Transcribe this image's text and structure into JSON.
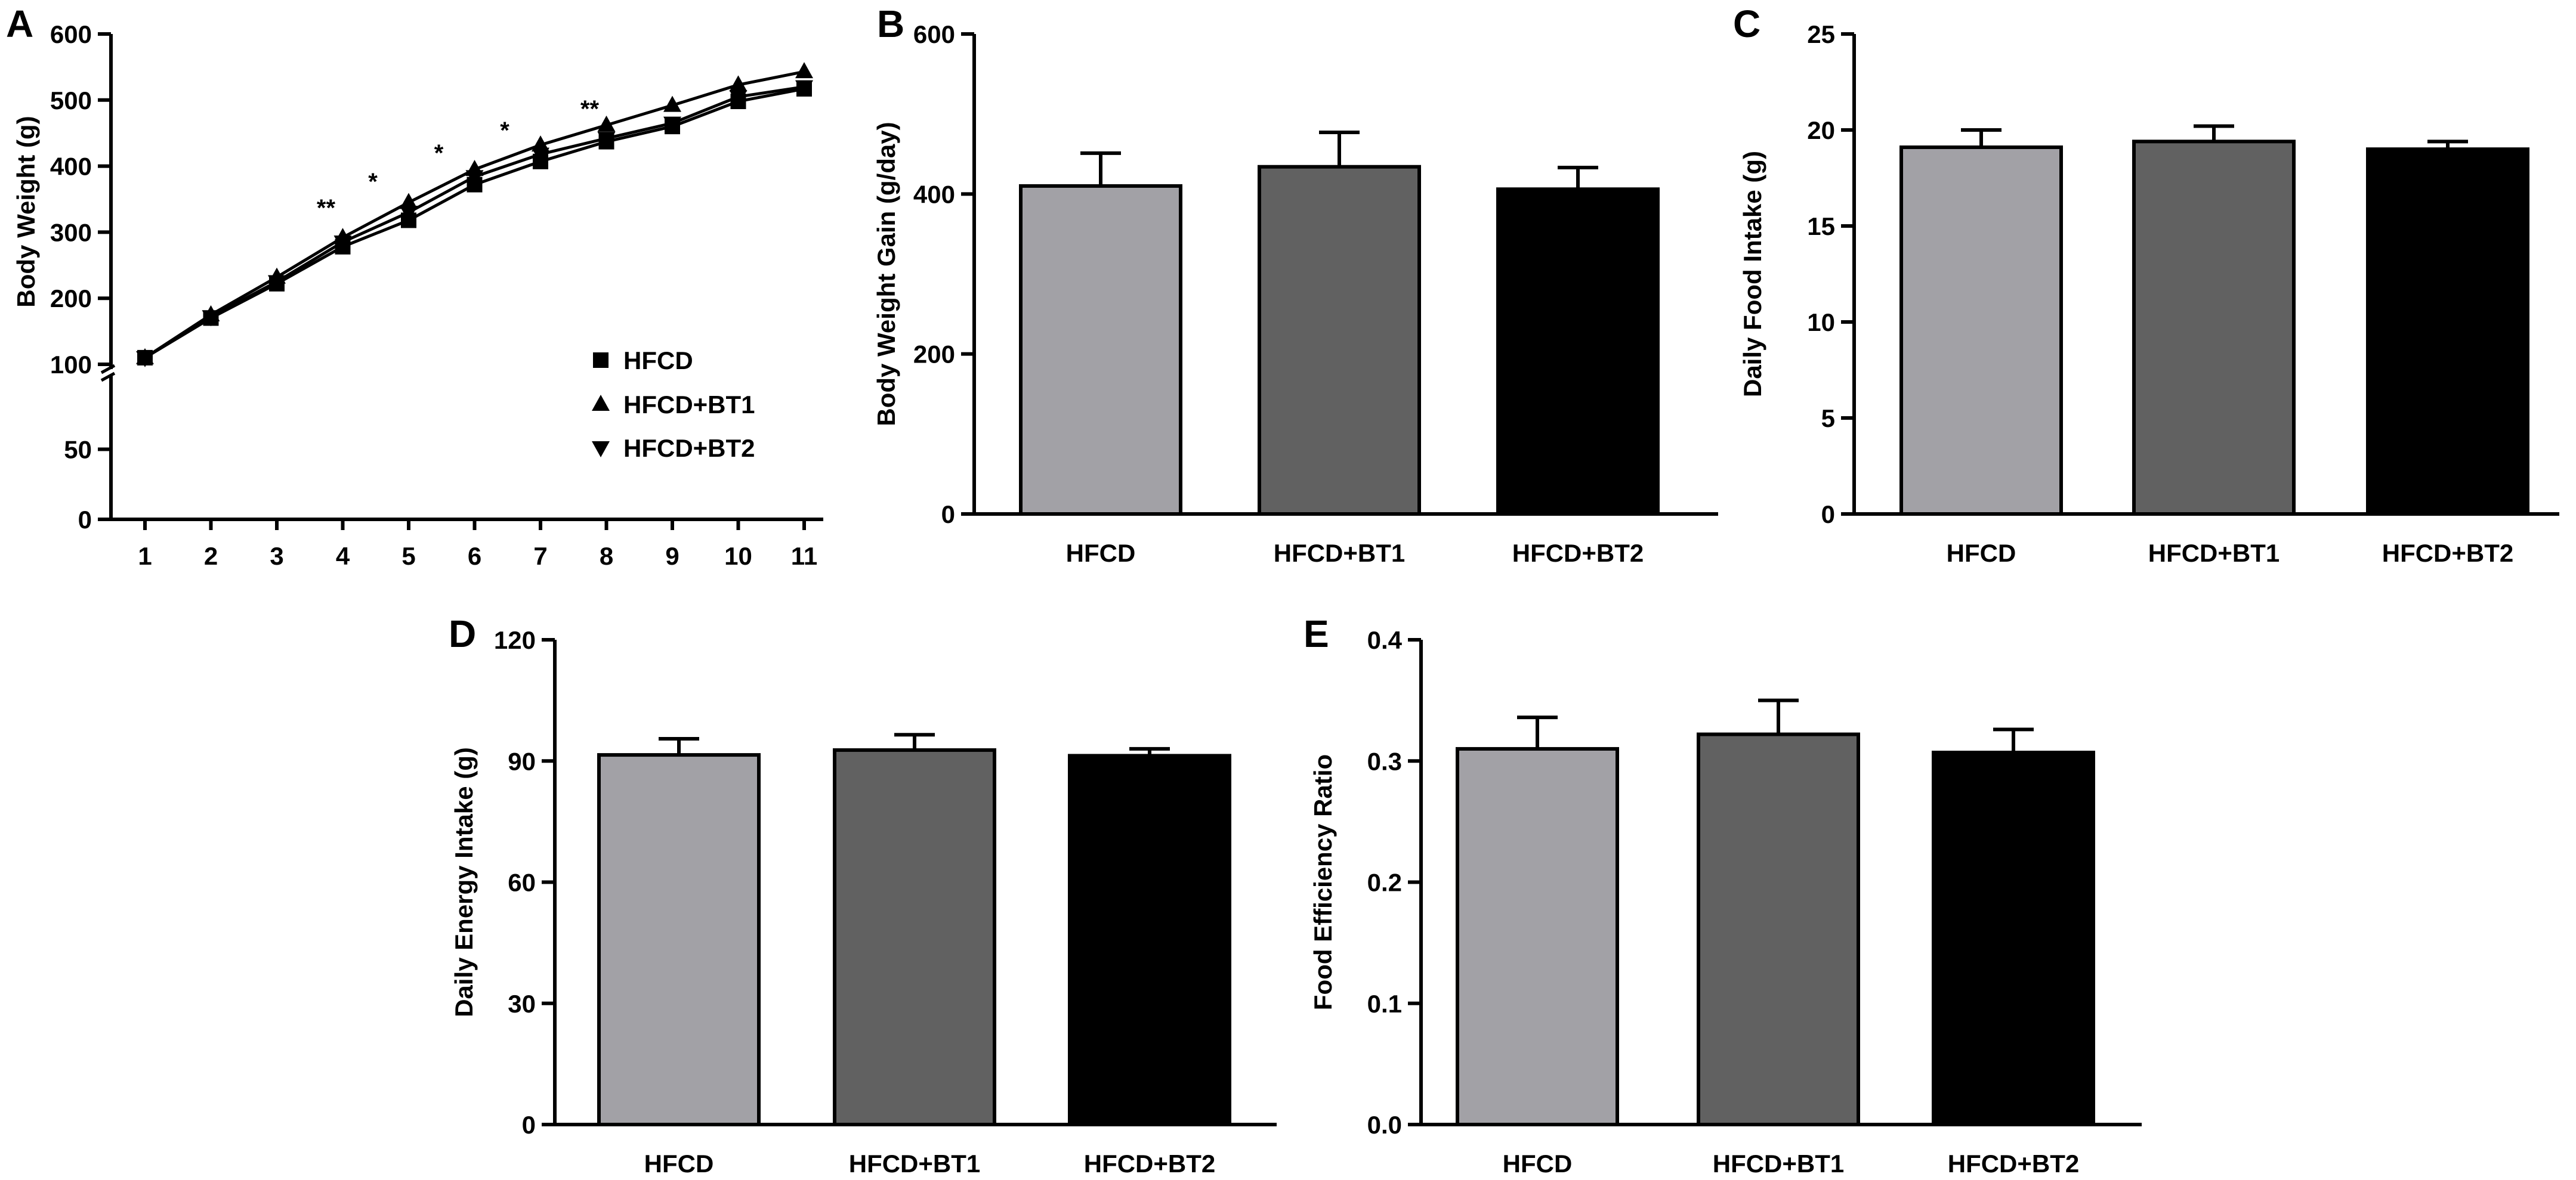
{
  "chart_data": [
    {
      "panel": "A",
      "type": "line",
      "ylabel": "Body Weight (g)",
      "xlabel": "",
      "x": [
        1,
        2,
        3,
        4,
        5,
        6,
        7,
        8,
        9,
        10,
        11
      ],
      "x_tick_labels": [
        "1",
        "2",
        "3",
        "4",
        "5",
        "6",
        "7",
        "8",
        "9",
        "10",
        "11"
      ],
      "ylim_upper": [
        100,
        600
      ],
      "ylim_lower": [
        0,
        100
      ],
      "y_tick_labels_upper": [
        "100",
        "200",
        "300",
        "400",
        "500",
        "600"
      ],
      "y_tick_labels_lower": [
        "0",
        "50"
      ],
      "axis_break": true,
      "series": [
        {
          "name": "HFCD",
          "marker": "square",
          "values": [
            110,
            170,
            222,
            278,
            318,
            372,
            407,
            437,
            460,
            498,
            517
          ]
        },
        {
          "name": "HFCD+BT1",
          "marker": "triangle-up",
          "values": [
            110,
            175,
            232,
            292,
            345,
            395,
            432,
            462,
            492,
            523,
            543
          ]
        },
        {
          "name": "HFCD+BT2",
          "marker": "triangle-down",
          "values": [
            110,
            172,
            225,
            285,
            330,
            384,
            418,
            442,
            465,
            505,
            520
          ]
        }
      ],
      "annotations": [
        {
          "x": 4,
          "label": "**"
        },
        {
          "x": 5,
          "label": "*"
        },
        {
          "x": 6,
          "label": "*"
        },
        {
          "x": 7,
          "label": "*"
        },
        {
          "x": 8,
          "label": "**"
        }
      ],
      "legend": [
        "HFCD",
        "HFCD+BT1",
        "HFCD+BT2"
      ],
      "legend_position": "lower-right"
    },
    {
      "panel": "B",
      "type": "bar",
      "ylabel": "Body Weight Gain (g/day)",
      "categories": [
        "HFCD",
        "HFCD+BT1",
        "HFCD+BT2"
      ],
      "values": [
        410,
        434,
        406
      ],
      "errors": [
        41,
        43,
        27
      ],
      "colors": [
        "#a2a1a6",
        "#616161",
        "#000000"
      ],
      "ylim": [
        0,
        600
      ],
      "y_tick_labels": [
        "0",
        "200",
        "400",
        "600"
      ]
    },
    {
      "panel": "C",
      "type": "bar",
      "ylabel": "Daily Food Intake (g)",
      "categories": [
        "HFCD",
        "HFCD+BT1",
        "HFCD+BT2"
      ],
      "values": [
        19.1,
        19.4,
        19.0
      ],
      "errors": [
        0.9,
        0.8,
        0.4
      ],
      "colors": [
        "#a2a1a6",
        "#616161",
        "#000000"
      ],
      "ylim": [
        0,
        25
      ],
      "y_tick_labels": [
        "0",
        "5",
        "10",
        "15",
        "20",
        "25"
      ]
    },
    {
      "panel": "D",
      "type": "bar",
      "ylabel": "Daily Energy Intake (g)",
      "categories": [
        "HFCD",
        "HFCD+BT1",
        "HFCD+BT2"
      ],
      "values": [
        91.5,
        92.7,
        91.3
      ],
      "errors": [
        4.0,
        3.8,
        1.7
      ],
      "colors": [
        "#a2a1a6",
        "#616161",
        "#000000"
      ],
      "ylim": [
        0,
        120
      ],
      "y_tick_labels": [
        "0",
        "30",
        "60",
        "90",
        "120"
      ]
    },
    {
      "panel": "E",
      "type": "bar",
      "ylabel": "Food Efficiency Ratio",
      "categories": [
        "HFCD",
        "HFCD+BT1",
        "HFCD+BT2"
      ],
      "values": [
        0.31,
        0.322,
        0.307
      ],
      "errors": [
        0.026,
        0.028,
        0.019
      ],
      "colors": [
        "#a2a1a6",
        "#616161",
        "#000000"
      ],
      "ylim": [
        0,
        0.4
      ],
      "y_tick_labels": [
        "0.0",
        "0.1",
        "0.2",
        "0.3",
        "0.4"
      ]
    }
  ]
}
